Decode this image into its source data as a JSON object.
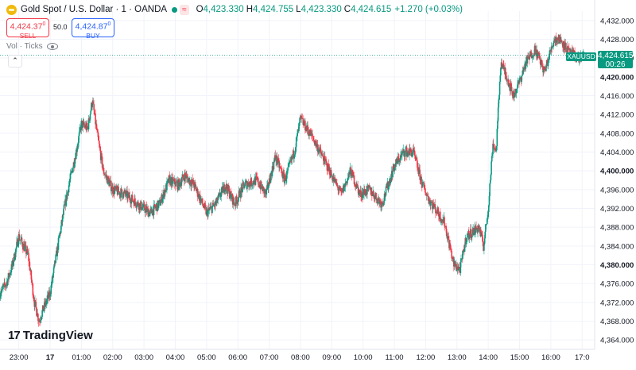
{
  "header": {
    "symbol_title": "Gold Spot / U.S. Dollar · 1 · OANDA",
    "wave_glyph": "≈",
    "o_label": "O",
    "o_value": "4,423.330",
    "h_label": "H",
    "h_value": "4,424.755",
    "l_label": "L",
    "l_value": "4,423.330",
    "c_label": "C",
    "c_value": "4,424.615",
    "change": "+1.270 (+0.03%)"
  },
  "trade": {
    "sell_price": "4,424.37",
    "sell_sup": "0",
    "sell_label": "SELL",
    "spread": "50.0",
    "buy_price": "4,424.87",
    "buy_sup": "0",
    "buy_label": "BUY"
  },
  "indicator": {
    "vol_label": "Vol · Ticks"
  },
  "collapse_glyph": "⌃",
  "last_price": {
    "symbol": "XAUUSD",
    "price": "4,424.615",
    "countdown": "00:26"
  },
  "logo_text": "TradingView",
  "logo_mark": "17",
  "colors": {
    "up": "#089981",
    "down": "#f23645",
    "grid": "#f0f3fa",
    "text": "#131722"
  },
  "icons": [
    "gold-coin-icon",
    "market-status-dot-icon",
    "eye-icon",
    "chevron-up-icon",
    "tradingview-logo-icon"
  ],
  "chart_data": {
    "type": "candlestick",
    "y_ticks": [
      4364,
      4368,
      4372,
      4376,
      4380,
      4384,
      4388,
      4392,
      4396,
      4400,
      4404,
      4408,
      4412,
      4416,
      4420,
      4424,
      4428,
      4432
    ],
    "y_tick_labels": [
      "4,364.000",
      "4,368.000",
      "4,372.000",
      "4,376.000",
      "4,380.000",
      "4,384.000",
      "4,388.000",
      "4,392.000",
      "4,396.000",
      "4,400.000",
      "4,404.000",
      "4,408.000",
      "4,412.000",
      "4,416.000",
      "4,420.000",
      "4,424.000",
      "4,428.000",
      "4,432.000"
    ],
    "bold_y_ticks": [
      "4,380.000",
      "4,400.000",
      "4,420.000"
    ],
    "ylim": [
      4362,
      4434
    ],
    "x_tick_labels": [
      "23:00",
      "17",
      "01:00",
      "02:00",
      "03:00",
      "04:00",
      "05:00",
      "06:00",
      "07:00",
      "08:00",
      "09:00",
      "10:00",
      "11:00",
      "12:00",
      "13:00",
      "14:00",
      "15:00",
      "16:00",
      "17:0"
    ],
    "x_tick_hours": [
      23,
      24,
      25,
      26,
      27,
      28,
      29,
      30,
      31,
      32,
      33,
      34,
      35,
      36,
      37,
      38,
      39,
      40,
      41
    ],
    "bold_x_ticks": [
      "17"
    ],
    "xlim_hours": [
      22.4,
      41.4
    ],
    "last_price": 4424.615,
    "path_hours": [
      22.4,
      22.6,
      22.8,
      23.0,
      23.3,
      23.5,
      23.65,
      23.75,
      24.0,
      24.2,
      24.4,
      24.6,
      24.8,
      25.0,
      25.2,
      25.35,
      25.5,
      25.7,
      26.0,
      26.4,
      26.8,
      27.2,
      27.5,
      27.8,
      28.1,
      28.3,
      28.6,
      29.0,
      29.3,
      29.6,
      29.9,
      30.2,
      30.6,
      30.9,
      31.2,
      31.5,
      31.8,
      32.0,
      32.4,
      32.7,
      33.0,
      33.3,
      33.6,
      33.9,
      34.2,
      34.6,
      35.0,
      35.3,
      35.6,
      35.9,
      36.1,
      36.4,
      36.6,
      36.9,
      37.1,
      37.3,
      37.5,
      37.7,
      37.85,
      38.0,
      38.15,
      38.25,
      38.4,
      38.6,
      38.8,
      39.0,
      39.2,
      39.5,
      39.8,
      40.1,
      40.3,
      40.6,
      40.9,
      41.05
    ],
    "path_prices": [
      4374,
      4376,
      4380,
      4386,
      4382,
      4372,
      4368,
      4370,
      4374,
      4382,
      4390,
      4397,
      4403,
      4410,
      4409,
      4415,
      4408,
      4400,
      4396,
      4395,
      4393,
      4391,
      4393,
      4398,
      4397,
      4399,
      4397,
      4391,
      4393,
      4397,
      4393,
      4397,
      4398,
      4395,
      4403,
      4398,
      4404,
      4411,
      4407,
      4403,
      4399,
      4395,
      4400,
      4395,
      4396,
      4393,
      4401,
      4404,
      4404,
      4397,
      4394,
      4391,
      4389,
      4380,
      4379,
      4386,
      4387,
      4388,
      4384,
      4392,
      4406,
      4404,
      4423,
      4420,
      4416,
      4419,
      4423,
      4426,
      4421,
      4428,
      4428,
      4425,
      4424,
      4424.6
    ]
  }
}
